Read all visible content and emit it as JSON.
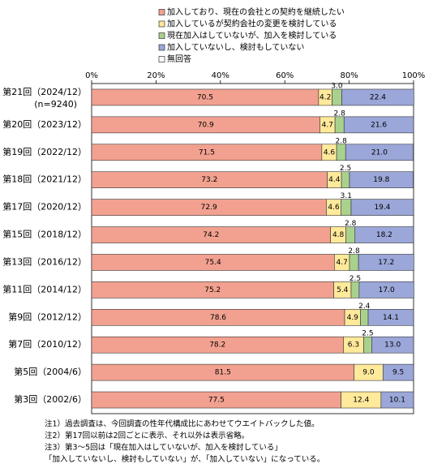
{
  "chart_data": {
    "type": "stacked-bar-horizontal",
    "categories": [
      "第21回（2024/12）",
      "第20回（2023/12）",
      "第19回（2022/12）",
      "第18回（2021/12）",
      "第17回（2020/12）",
      "第15回（2018/12）",
      "第13回（2016/12）",
      "第11回（2014/12）",
      "第9回（2012/12）",
      "第7回（2010/12）",
      "第5回（2004/6）",
      "第3回（2002/6）"
    ],
    "sample_size": "(n=9240)",
    "series": [
      {
        "name": "加入しており、現在の会社との契約を継続したい",
        "color": "#f2a190",
        "values": [
          70.5,
          70.9,
          71.5,
          73.2,
          72.9,
          74.2,
          75.4,
          75.2,
          78.6,
          78.2,
          81.5,
          77.5
        ],
        "value_labels": [
          "70.5",
          "70.9",
          "71.5",
          "73.2",
          "72.9",
          "74.2",
          "75.4",
          "75.2",
          "78.6",
          "78.2",
          "81.5",
          "77.5"
        ]
      },
      {
        "name": "加入しているが契約会社の変更を検討している",
        "color": "#ffe99a",
        "values": [
          4.2,
          4.7,
          4.6,
          4.4,
          4.6,
          4.8,
          4.7,
          5.4,
          4.9,
          6.3,
          9.0,
          12.4
        ],
        "value_labels": [
          "4.2",
          "4.7",
          "4.6",
          "4.4",
          "4.6",
          "4.8",
          "4.7",
          "5.4",
          "4.9",
          "6.3",
          "9.0",
          "12.4"
        ]
      },
      {
        "name": "現在加入はしていないが、加入を検討している",
        "color": "#a9d18e",
        "values": [
          3.0,
          2.8,
          2.8,
          2.5,
          3.1,
          2.8,
          2.8,
          2.5,
          2.4,
          2.5,
          null,
          null
        ],
        "value_labels": [
          "3.0",
          "2.8",
          "2.8",
          "2.5",
          "3.1",
          "2.8",
          "2.8",
          "2.5",
          "2.4",
          "2.5",
          null,
          null
        ]
      },
      {
        "name": "加入していないし、検討もしていない",
        "color": "#9ba7d9",
        "values": [
          22.4,
          21.6,
          21.0,
          19.8,
          19.4,
          18.2,
          17.2,
          17.0,
          14.1,
          13.0,
          9.5,
          10.1
        ],
        "value_labels": [
          "22.4",
          "21.6",
          "21.0",
          "19.8",
          "19.4",
          "18.2",
          "17.2",
          "17.0",
          "14.1",
          "13.0",
          "9.5",
          "10.1"
        ]
      },
      {
        "name": "無回答",
        "color": "#ffffff",
        "values": [
          0,
          0,
          0,
          0,
          0,
          0,
          0,
          0,
          0,
          0,
          0,
          0
        ]
      }
    ],
    "xlim": [
      0,
      100
    ],
    "xticks": [
      {
        "value": 0,
        "label": "0%"
      },
      {
        "value": 20,
        "label": "20%"
      },
      {
        "value": 40,
        "label": "40%"
      },
      {
        "value": 60,
        "label": "60%"
      },
      {
        "value": 80,
        "label": "80%"
      },
      {
        "value": 100,
        "label": "100%"
      }
    ],
    "notes": [
      "注1）過去調査は、今回調査の性年代構成比にあわせてウエイトバックした値。",
      "注2）第17回以前は2回ごとに表示、それ以外は表示省略。",
      "注3）第3～5回は「現在加入はしていないが、加入を検討している」",
      "「加入していないし、検討もしていない」が、「加入していない」になっている。"
    ]
  }
}
